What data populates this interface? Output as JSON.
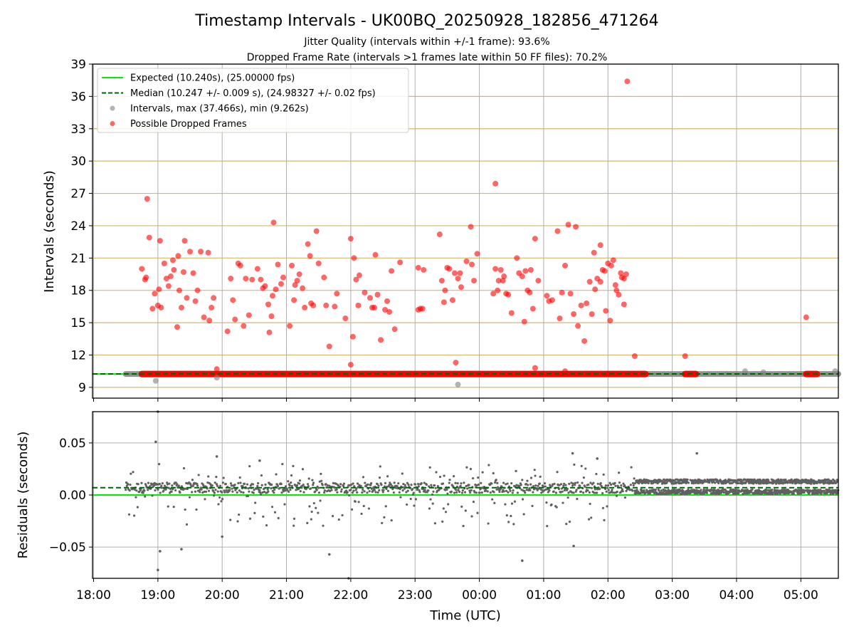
{
  "title": "Timestamp Intervals - UK00BQ_20250928_182856_471264",
  "subtitle_1": "Jitter Quality (intervals within +/-1 frame): 93.6%",
  "subtitle_2": "Dropped Frame Rate (intervals >1 frames late within 50 FF files): 70.2%",
  "colors": {
    "expected": "#00ee00",
    "median": "#006400",
    "intervals": "#808080",
    "dropped": "#ff0000",
    "hgrid": "#d4b870",
    "vgrid": "#b0b0b0",
    "residuals": "#606060"
  },
  "chart_data": [
    {
      "type": "scatter",
      "panel": "intervals",
      "ylabel": "Intervals (seconds)",
      "xlabel": "",
      "x_ticks": [
        "18:00",
        "19:00",
        "20:00",
        "21:00",
        "22:00",
        "23:00",
        "00:00",
        "01:00",
        "02:00",
        "03:00",
        "04:00",
        "05:00"
      ],
      "xlim": [
        "17:59",
        "05:35"
      ],
      "ylim": [
        8,
        39
      ],
      "y_ticks": [
        9,
        12,
        15,
        18,
        21,
        24,
        27,
        30,
        33,
        36,
        39
      ],
      "grid": "on",
      "legend_position": "top-left",
      "legend": [
        {
          "label": "Expected (10.240s), (25.00000 fps)",
          "style": "solid-line",
          "color": "#00ee00"
        },
        {
          "label": "Median (10.247 +/- 0.009 s), (24.98327 +/- 0.02 fps)",
          "style": "dashed-line",
          "color": "#006400"
        },
        {
          "label": "Intervals, max (37.466s), min (9.262s)",
          "style": "marker",
          "color": "#808080"
        },
        {
          "label": "Possible Dropped Frames",
          "style": "marker",
          "color": "#ff0000"
        }
      ],
      "expected_value": 10.24,
      "median_value": 10.247,
      "interval_band": {
        "value": 10.24,
        "x_start": "18:30",
        "x_end": "05:35"
      },
      "dropped_band_segments": [
        [
          "18:45",
          "02:35"
        ],
        [
          "03:12",
          "03:22"
        ],
        [
          "05:05",
          "05:15"
        ]
      ],
      "intervals_outliers": [
        {
          "x": "18:58",
          "y": 9.6
        },
        {
          "x": "19:55",
          "y": 9.9
        },
        {
          "x": "23:40",
          "y": 9.26
        },
        {
          "x": "04:08",
          "y": 10.5
        },
        {
          "x": "04:25",
          "y": 10.4
        },
        {
          "x": "05:32",
          "y": 10.5
        }
      ],
      "dropped_points": [
        {
          "x": "18:50",
          "y": 26.5
        },
        {
          "x": "18:52",
          "y": 22.9
        },
        {
          "x": "18:55",
          "y": 16.3
        },
        {
          "x": "18:57",
          "y": 17.7
        },
        {
          "x": "19:00",
          "y": 16.6
        },
        {
          "x": "19:02",
          "y": 22.6
        },
        {
          "x": "19:03",
          "y": 16.4
        },
        {
          "x": "19:06",
          "y": 20.5
        },
        {
          "x": "19:08",
          "y": 19.1
        },
        {
          "x": "19:10",
          "y": 18.4
        },
        {
          "x": "19:12",
          "y": 19.3
        },
        {
          "x": "19:15",
          "y": 19.9
        },
        {
          "x": "19:18",
          "y": 14.6
        },
        {
          "x": "19:20",
          "y": 18.0
        },
        {
          "x": "19:22",
          "y": 16.4
        },
        {
          "x": "19:25",
          "y": 22.6
        },
        {
          "x": "19:27",
          "y": 17.3
        },
        {
          "x": "19:30",
          "y": 21.6
        },
        {
          "x": "19:33",
          "y": 19.6
        },
        {
          "x": "19:35",
          "y": 17.0
        },
        {
          "x": "19:40",
          "y": 21.6
        },
        {
          "x": "19:43",
          "y": 15.5
        },
        {
          "x": "19:48",
          "y": 15.2
        },
        {
          "x": "19:50",
          "y": 16.4
        },
        {
          "x": "19:52",
          "y": 17.3
        },
        {
          "x": "19:47",
          "y": 21.5
        },
        {
          "x": "19:55",
          "y": 10.7
        },
        {
          "x": "18:45",
          "y": 20.0
        },
        {
          "x": "18:48",
          "y": 19.0
        },
        {
          "x": "18:49",
          "y": 19.2
        },
        {
          "x": "19:01",
          "y": 18.1
        },
        {
          "x": "19:14",
          "y": 20.8
        },
        {
          "x": "19:19",
          "y": 21.2
        },
        {
          "x": "19:24",
          "y": 19.7
        },
        {
          "x": "19:37",
          "y": 18.0
        },
        {
          "x": "20:05",
          "y": 14.2
        },
        {
          "x": "20:10",
          "y": 17.1
        },
        {
          "x": "20:12",
          "y": 15.3
        },
        {
          "x": "20:15",
          "y": 20.5
        },
        {
          "x": "20:17",
          "y": 20.3
        },
        {
          "x": "20:20",
          "y": 14.7
        },
        {
          "x": "20:22",
          "y": 19.1
        },
        {
          "x": "20:25",
          "y": 15.7
        },
        {
          "x": "20:28",
          "y": 19.0
        },
        {
          "x": "20:33",
          "y": 20.0
        },
        {
          "x": "20:36",
          "y": 19.0
        },
        {
          "x": "20:38",
          "y": 18.2
        },
        {
          "x": "20:40",
          "y": 18.4
        },
        {
          "x": "20:43",
          "y": 16.7
        },
        {
          "x": "20:44",
          "y": 14.1
        },
        {
          "x": "20:47",
          "y": 17.5
        },
        {
          "x": "20:48",
          "y": 24.3
        },
        {
          "x": "20:50",
          "y": 18.1
        },
        {
          "x": "20:52",
          "y": 20.4
        },
        {
          "x": "20:55",
          "y": 18.6
        },
        {
          "x": "20:57",
          "y": 19.2
        },
        {
          "x": "20:46",
          "y": 15.6
        },
        {
          "x": "20:08",
          "y": 19.1
        },
        {
          "x": "21:03",
          "y": 14.7
        },
        {
          "x": "21:05",
          "y": 20.3
        },
        {
          "x": "21:07",
          "y": 17.1
        },
        {
          "x": "21:08",
          "y": 18.5
        },
        {
          "x": "21:10",
          "y": 18.9
        },
        {
          "x": "21:12",
          "y": 19.5
        },
        {
          "x": "21:15",
          "y": 18.2
        },
        {
          "x": "21:17",
          "y": 16.4
        },
        {
          "x": "21:20",
          "y": 22.3
        },
        {
          "x": "21:22",
          "y": 21.2
        },
        {
          "x": "21:23",
          "y": 16.8
        },
        {
          "x": "21:25",
          "y": 16.6
        },
        {
          "x": "21:28",
          "y": 23.5
        },
        {
          "x": "21:30",
          "y": 20.5
        },
        {
          "x": "21:35",
          "y": 19.2
        },
        {
          "x": "21:37",
          "y": 16.6
        },
        {
          "x": "21:40",
          "y": 12.8
        },
        {
          "x": "21:45",
          "y": 16.5
        },
        {
          "x": "21:47",
          "y": 17.7
        },
        {
          "x": "21:55",
          "y": 15.4
        },
        {
          "x": "22:00",
          "y": 22.8
        },
        {
          "x": "22:02",
          "y": 13.7
        },
        {
          "x": "22:03",
          "y": 21.0
        },
        {
          "x": "22:05",
          "y": 19.0
        },
        {
          "x": "22:07",
          "y": 16.6
        },
        {
          "x": "22:08",
          "y": 19.4
        },
        {
          "x": "22:13",
          "y": 17.8
        },
        {
          "x": "22:18",
          "y": 17.3
        },
        {
          "x": "22:20",
          "y": 16.4
        },
        {
          "x": "22:22",
          "y": 16.4
        },
        {
          "x": "22:23",
          "y": 21.3
        },
        {
          "x": "22:25",
          "y": 17.6
        },
        {
          "x": "22:28",
          "y": 13.4
        },
        {
          "x": "22:32",
          "y": 16.2
        },
        {
          "x": "22:34",
          "y": 17.0
        },
        {
          "x": "22:36",
          "y": 16.0
        },
        {
          "x": "22:38",
          "y": 19.8
        },
        {
          "x": "22:41",
          "y": 14.4
        },
        {
          "x": "22:46",
          "y": 20.6
        },
        {
          "x": "22:00",
          "y": 11.1
        },
        {
          "x": "23:03",
          "y": 16.2
        },
        {
          "x": "23:05",
          "y": 16.3
        },
        {
          "x": "23:07",
          "y": 16.3
        },
        {
          "x": "23:03",
          "y": 20.1
        },
        {
          "x": "23:08",
          "y": 19.9
        },
        {
          "x": "23:23",
          "y": 23.2
        },
        {
          "x": "23:25",
          "y": 18.9
        },
        {
          "x": "23:27",
          "y": 16.9
        },
        {
          "x": "23:28",
          "y": 18.0
        },
        {
          "x": "23:30",
          "y": 20.1
        },
        {
          "x": "23:32",
          "y": 20.0
        },
        {
          "x": "23:35",
          "y": 17.1
        },
        {
          "x": "23:37",
          "y": 19.6
        },
        {
          "x": "23:40",
          "y": 19.1
        },
        {
          "x": "23:42",
          "y": 19.6
        },
        {
          "x": "23:43",
          "y": 18.3
        },
        {
          "x": "23:48",
          "y": 20.7
        },
        {
          "x": "23:52",
          "y": 23.9
        },
        {
          "x": "23:53",
          "y": 20.4
        },
        {
          "x": "23:55",
          "y": 18.9
        },
        {
          "x": "23:58",
          "y": 21.4
        },
        {
          "x": "23:38",
          "y": 11.3
        },
        {
          "x": "00:13",
          "y": 17.7
        },
        {
          "x": "00:15",
          "y": 20.0
        },
        {
          "x": "00:15",
          "y": 27.9
        },
        {
          "x": "00:17",
          "y": 18.0
        },
        {
          "x": "00:18",
          "y": 18.9
        },
        {
          "x": "00:20",
          "y": 19.9
        },
        {
          "x": "00:22",
          "y": 18.9
        },
        {
          "x": "00:23",
          "y": 19.3
        },
        {
          "x": "00:25",
          "y": 17.7
        },
        {
          "x": "00:27",
          "y": 17.6
        },
        {
          "x": "00:30",
          "y": 15.9
        },
        {
          "x": "00:35",
          "y": 21.0
        },
        {
          "x": "00:37",
          "y": 19.6
        },
        {
          "x": "00:40",
          "y": 19.3
        },
        {
          "x": "00:42",
          "y": 15.1
        },
        {
          "x": "00:43",
          "y": 19.8
        },
        {
          "x": "00:45",
          "y": 18.0
        },
        {
          "x": "00:47",
          "y": 17.8
        },
        {
          "x": "00:48",
          "y": 19.9
        },
        {
          "x": "00:50",
          "y": 16.3
        },
        {
          "x": "00:52",
          "y": 22.8
        },
        {
          "x": "00:55",
          "y": 18.9
        },
        {
          "x": "00:52",
          "y": 10.8
        },
        {
          "x": "01:03",
          "y": 17.5
        },
        {
          "x": "01:05",
          "y": 17.0
        },
        {
          "x": "01:08",
          "y": 17.1
        },
        {
          "x": "01:13",
          "y": 23.5
        },
        {
          "x": "01:15",
          "y": 15.4
        },
        {
          "x": "01:17",
          "y": 17.8
        },
        {
          "x": "01:20",
          "y": 20.3
        },
        {
          "x": "01:23",
          "y": 24.1
        },
        {
          "x": "01:25",
          "y": 17.7
        },
        {
          "x": "01:28",
          "y": 15.8
        },
        {
          "x": "01:30",
          "y": 23.9
        },
        {
          "x": "01:32",
          "y": 14.7
        },
        {
          "x": "01:35",
          "y": 16.6
        },
        {
          "x": "01:38",
          "y": 13.3
        },
        {
          "x": "01:40",
          "y": 16.8
        },
        {
          "x": "01:43",
          "y": 18.8
        },
        {
          "x": "01:45",
          "y": 15.8
        },
        {
          "x": "01:47",
          "y": 21.5
        },
        {
          "x": "01:48",
          "y": 18.1
        },
        {
          "x": "01:50",
          "y": 19.1
        },
        {
          "x": "01:53",
          "y": 18.8
        },
        {
          "x": "01:55",
          "y": 19.9
        },
        {
          "x": "01:57",
          "y": 19.8
        },
        {
          "x": "01:58",
          "y": 16.1
        },
        {
          "x": "02:00",
          "y": 20.5
        },
        {
          "x": "02:02",
          "y": 15.2
        },
        {
          "x": "02:05",
          "y": 20.8
        },
        {
          "x": "02:07",
          "y": 18.5
        },
        {
          "x": "02:08",
          "y": 18.0
        },
        {
          "x": "02:10",
          "y": 17.6
        },
        {
          "x": "02:12",
          "y": 19.6
        },
        {
          "x": "02:13",
          "y": 19.2
        },
        {
          "x": "02:15",
          "y": 19.1
        },
        {
          "x": "02:17",
          "y": 19.5
        },
        {
          "x": "02:15",
          "y": 16.7
        },
        {
          "x": "02:18",
          "y": 37.4
        },
        {
          "x": "02:25",
          "y": 11.9
        },
        {
          "x": "01:53",
          "y": 22.2
        },
        {
          "x": "02:03",
          "y": 20.3
        },
        {
          "x": "01:20",
          "y": 10.5
        },
        {
          "x": "03:12",
          "y": 11.9
        },
        {
          "x": "05:05",
          "y": 15.5
        }
      ]
    },
    {
      "type": "scatter",
      "panel": "residuals",
      "ylabel": "Residuals (seconds)",
      "xlabel": "Time (UTC)",
      "x_ticks": [
        "18:00",
        "19:00",
        "20:00",
        "21:00",
        "22:00",
        "23:00",
        "00:00",
        "01:00",
        "02:00",
        "03:00",
        "04:00",
        "05:00"
      ],
      "xlim": [
        "17:59",
        "05:35"
      ],
      "ylim": [
        -0.08,
        0.08
      ],
      "y_ticks": [
        "−0.05",
        "0.00",
        "0.05"
      ],
      "y_tick_values": [
        -0.05,
        0.0,
        0.05
      ],
      "grid": "on",
      "expected_value": 0.0,
      "median_value": 0.007,
      "clusters": [
        {
          "x_start": "18:30",
          "x_end": "02:25",
          "center": 0.007,
          "spread": 0.005,
          "outlier_spread": 0.03
        },
        {
          "x_start": "02:25",
          "x_end": "05:35",
          "center": 0.008,
          "spread": 0.007,
          "outlier_spread": 0.0
        }
      ],
      "outliers": [
        {
          "x": "18:58",
          "y": 0.051
        },
        {
          "x": "19:00",
          "y": 0.08
        },
        {
          "x": "19:00",
          "y": -0.072
        },
        {
          "x": "19:02",
          "y": -0.054
        },
        {
          "x": "19:22",
          "y": -0.052
        },
        {
          "x": "19:55",
          "y": 0.037
        },
        {
          "x": "21:58",
          "y": -0.08
        },
        {
          "x": "21:40",
          "y": -0.057
        },
        {
          "x": "00:40",
          "y": -0.063
        },
        {
          "x": "01:27",
          "y": 0.04
        },
        {
          "x": "01:28",
          "y": -0.049
        },
        {
          "x": "01:50",
          "y": 0.035
        },
        {
          "x": "03:23",
          "y": 0.04
        },
        {
          "x": "20:00",
          "y": -0.04
        },
        {
          "x": "20:35",
          "y": 0.033
        }
      ]
    }
  ]
}
